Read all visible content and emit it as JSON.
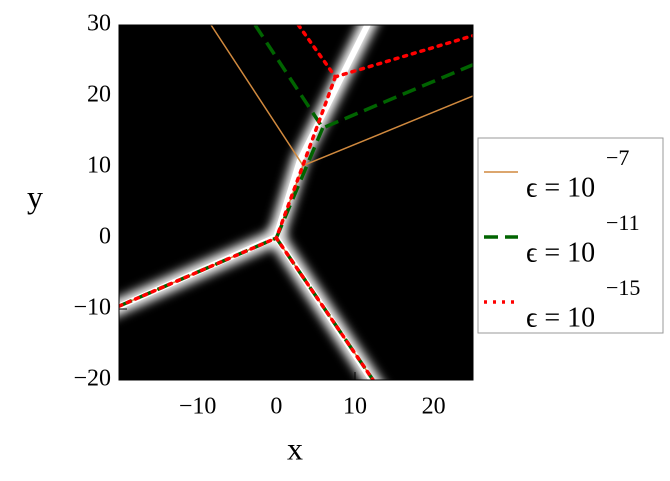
{
  "chart_data": {
    "type": "line",
    "x_label": "x",
    "y_label": "y",
    "xlim": [
      -20,
      25
    ],
    "ylim": [
      -20,
      30
    ],
    "xticks": [
      {
        "value": -10,
        "label": "−10"
      },
      0,
      10,
      20
    ],
    "yticks": [
      {
        "value": -20,
        "label": "−20"
      },
      {
        "value": -10,
        "label": "−10"
      },
      0,
      10,
      20,
      30
    ],
    "background": "#000000",
    "series": [
      {
        "name": "ϵ = 10",
        "exponent": "−7",
        "color": "#d0893e",
        "linestyle": "solid",
        "x": [
          -8.3,
          3.4,
          25,
          null,
          3.4,
          0,
          null,
          -20,
          0,
          12.3
        ],
        "values": [
          30,
          10.2,
          20,
          null,
          10.2,
          0,
          null,
          -9.6,
          0,
          -20
        ]
      },
      {
        "name": "ϵ = 10",
        "exponent": "−11",
        "color": "#006400",
        "linestyle": "dashed",
        "x": [
          -2.7,
          5.9,
          25,
          null,
          5.9,
          0,
          null,
          -20,
          0,
          12.3
        ],
        "values": [
          30,
          15.5,
          24.4,
          null,
          15.5,
          0,
          null,
          -9.6,
          0,
          -20
        ]
      },
      {
        "name": "ϵ = 10",
        "exponent": "−15",
        "color": "#ff0000",
        "linestyle": "dotted",
        "x": [
          2.8,
          7.5,
          25,
          null,
          7.5,
          0,
          null,
          -20,
          0,
          12.3
        ],
        "values": [
          30,
          22.7,
          28.5,
          null,
          22.7,
          0,
          null,
          -9.6,
          0,
          -20
        ]
      }
    ]
  }
}
